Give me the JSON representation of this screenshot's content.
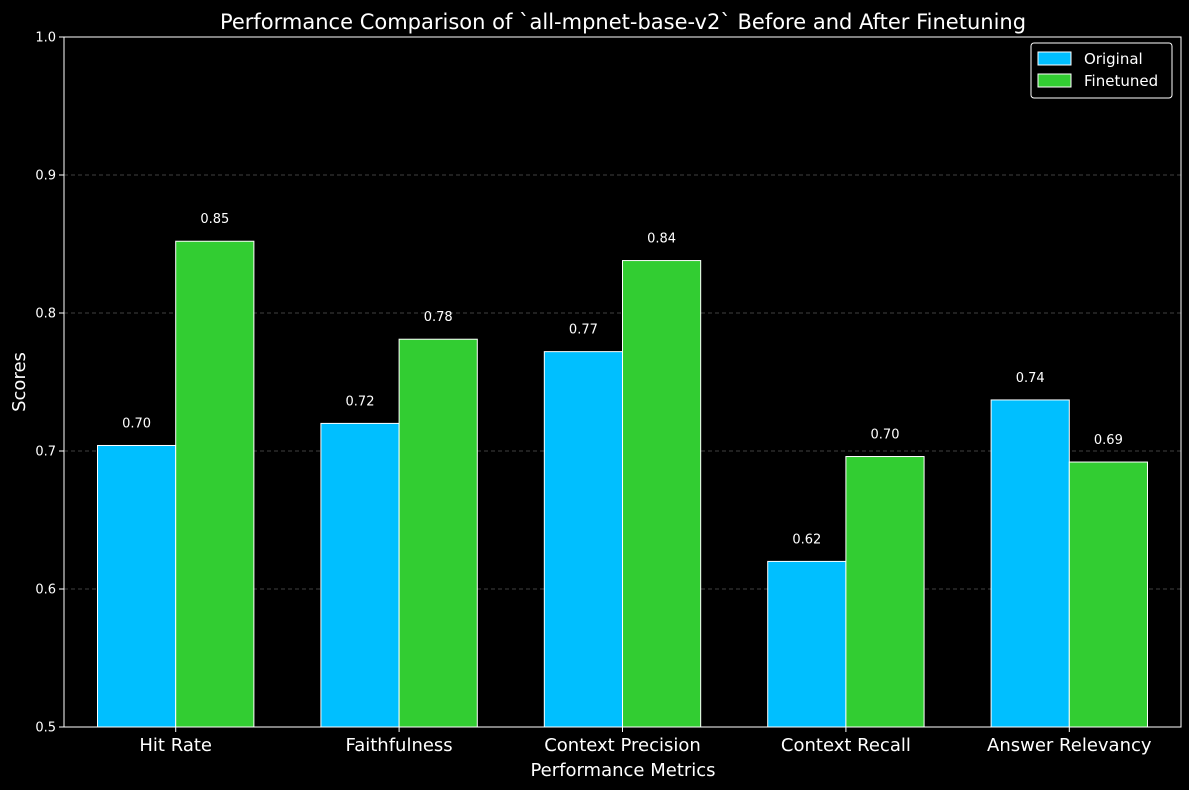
{
  "chart_data": {
    "type": "bar",
    "title": "Performance Comparison of `all-mpnet-base-v2` Before and After Finetuning",
    "xlabel": "Performance Metrics",
    "ylabel": "Scores",
    "ylim": [
      0.5,
      1.0
    ],
    "yticks": [
      0.5,
      0.6,
      0.7,
      0.8,
      0.9,
      1.0
    ],
    "ytick_labels": [
      "0.5",
      "0.6",
      "0.7",
      "0.8",
      "0.9",
      "1.0"
    ],
    "grid": "horizontal dashed",
    "legend_position": "top-right",
    "categories": [
      "Hit Rate",
      "Faithfulness",
      "Context Precision",
      "Context Recall",
      "Answer Relevancy"
    ],
    "series": [
      {
        "name": "Original",
        "color": "#00bfff",
        "values": [
          0.704,
          0.72,
          0.772,
          0.62,
          0.737
        ],
        "labels": [
          "0.70",
          "0.72",
          "0.77",
          "0.62",
          "0.74"
        ]
      },
      {
        "name": "Finetuned",
        "color": "#32cd32",
        "values": [
          0.852,
          0.781,
          0.838,
          0.696,
          0.692
        ],
        "labels": [
          "0.85",
          "0.78",
          "0.84",
          "0.70",
          "0.69"
        ]
      }
    ]
  }
}
